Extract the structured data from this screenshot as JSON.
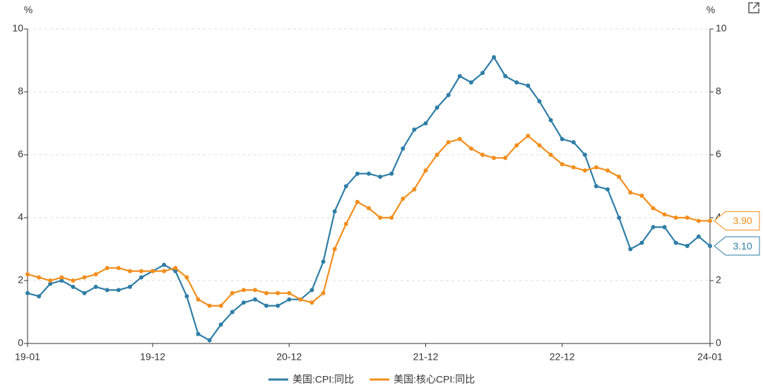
{
  "chart_data": {
    "type": "line",
    "y_unit": "%",
    "y2_unit": "%",
    "categories": [
      "19-01",
      null,
      null,
      null,
      null,
      null,
      null,
      null,
      null,
      null,
      null,
      "19-12",
      null,
      null,
      null,
      null,
      null,
      null,
      null,
      null,
      null,
      null,
      null,
      "20-12",
      null,
      null,
      null,
      null,
      null,
      null,
      null,
      null,
      null,
      null,
      null,
      "21-12",
      null,
      null,
      null,
      null,
      null,
      null,
      null,
      null,
      null,
      null,
      null,
      "22-12",
      null,
      null,
      null,
      null,
      null,
      null,
      null,
      null,
      null,
      null,
      null,
      null,
      "24-01"
    ],
    "series": [
      {
        "name": "美国:CPI:同比",
        "color": "#2e7ea6",
        "values": [
          1.6,
          1.5,
          1.9,
          2.0,
          1.8,
          1.6,
          1.8,
          1.7,
          1.7,
          1.8,
          2.1,
          2.3,
          2.5,
          2.3,
          1.5,
          0.3,
          0.1,
          0.6,
          1.0,
          1.3,
          1.4,
          1.2,
          1.2,
          1.4,
          1.4,
          1.7,
          2.6,
          4.2,
          5.0,
          5.4,
          5.4,
          5.3,
          5.4,
          6.2,
          6.8,
          7.0,
          7.5,
          7.9,
          8.5,
          8.3,
          8.6,
          9.1,
          8.5,
          8.3,
          8.2,
          7.7,
          7.1,
          6.5,
          6.4,
          6.0,
          5.0,
          4.9,
          4.0,
          3.0,
          3.2,
          3.7,
          3.7,
          3.2,
          3.1,
          3.4,
          3.1
        ],
        "value_labels": [
          null,
          null,
          null,
          null,
          null,
          null,
          null,
          null,
          null,
          null,
          null,
          null,
          null,
          null,
          null,
          null,
          null,
          null,
          null,
          null,
          null,
          null,
          null,
          null,
          null,
          null,
          null,
          null,
          null,
          null,
          null,
          null,
          null,
          null,
          null,
          null,
          null,
          null,
          null,
          null,
          null,
          null,
          null,
          null,
          null,
          null,
          null,
          null,
          null,
          null,
          null,
          null,
          null,
          null,
          null,
          null,
          null,
          null,
          null,
          null,
          "3.10"
        ]
      },
      {
        "name": "美国:核心CPI:同比",
        "color": "#f28e1c",
        "values": [
          2.2,
          2.1,
          2.0,
          2.1,
          2.0,
          2.1,
          2.2,
          2.4,
          2.4,
          2.3,
          2.3,
          2.3,
          2.3,
          2.4,
          2.1,
          1.4,
          1.2,
          1.2,
          1.6,
          1.7,
          1.7,
          1.6,
          1.6,
          1.6,
          1.4,
          1.3,
          1.6,
          3.0,
          3.8,
          4.5,
          4.3,
          4.0,
          4.0,
          4.6,
          4.9,
          5.5,
          6.0,
          6.4,
          6.5,
          6.2,
          6.0,
          5.9,
          5.9,
          6.3,
          6.6,
          6.3,
          6.0,
          5.7,
          5.6,
          5.5,
          5.6,
          5.5,
          5.3,
          4.8,
          4.7,
          4.3,
          4.1,
          4.0,
          4.0,
          3.9,
          3.9
        ],
        "value_labels": [
          null,
          null,
          null,
          null,
          null,
          null,
          null,
          null,
          null,
          null,
          null,
          null,
          null,
          null,
          null,
          null,
          null,
          null,
          null,
          null,
          null,
          null,
          null,
          null,
          null,
          null,
          null,
          null,
          null,
          null,
          null,
          null,
          null,
          null,
          null,
          null,
          null,
          null,
          null,
          null,
          null,
          null,
          null,
          null,
          null,
          null,
          null,
          null,
          null,
          null,
          null,
          null,
          null,
          null,
          null,
          null,
          null,
          null,
          null,
          null,
          "3.90"
        ]
      }
    ],
    "ylim": [
      0,
      10
    ],
    "yticks": [
      0,
      2,
      4,
      6,
      8,
      10
    ],
    "y2lim": [
      0,
      10
    ],
    "y2ticks": [
      0,
      2,
      4,
      6,
      8,
      10
    ],
    "grid": true
  }
}
